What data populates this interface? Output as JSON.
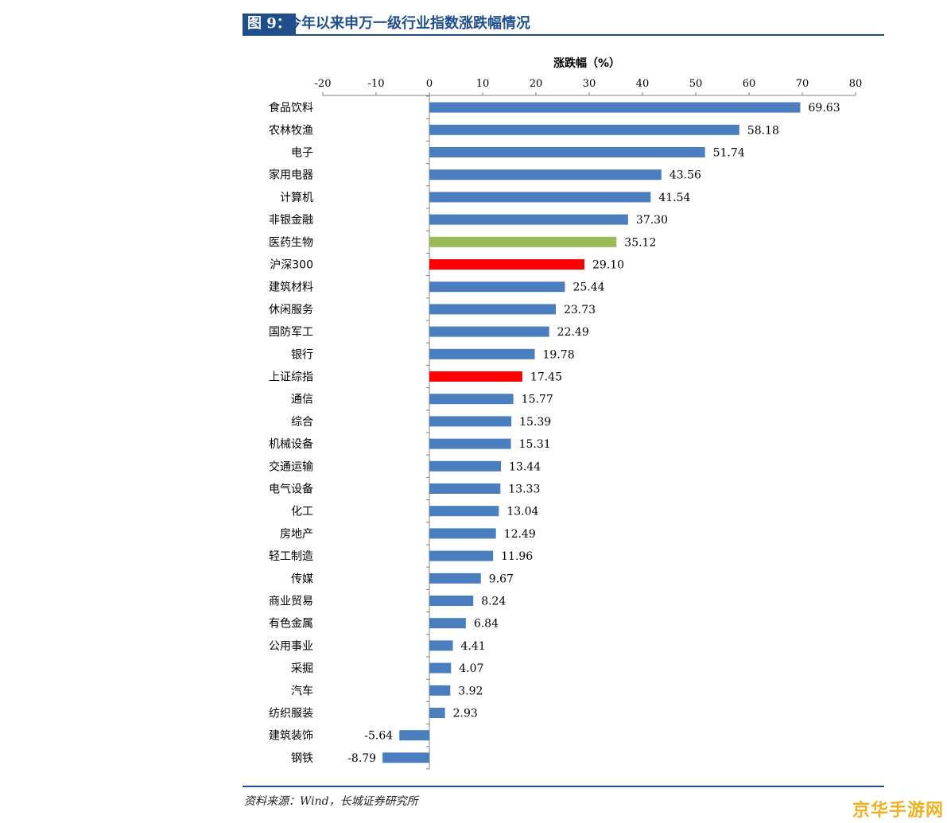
{
  "figure": {
    "tag": "图 9：",
    "title": "今年以来申万一级行业指数涨跌幅情况",
    "source": "资料来源：Wind，长城证券研究所",
    "watermark": "京华手游网"
  },
  "colors": {
    "default_bar": "#4a7ebf",
    "highlight_green": "#9bbb59",
    "highlight_red": "#ff0000",
    "header_blue": "#1f4e8c"
  },
  "chart_data": {
    "type": "bar",
    "orientation": "horizontal",
    "title": "",
    "xlabel": "涨跌幅（%）",
    "ylabel": "",
    "xlim": [
      -20,
      80
    ],
    "xticks": [
      -20,
      -10,
      0,
      10,
      20,
      30,
      40,
      50,
      60,
      70,
      80
    ],
    "xticks_position": "top",
    "grid": false,
    "categories": [
      "食品饮料",
      "农林牧渔",
      "电子",
      "家用电器",
      "计算机",
      "非银金融",
      "医药生物",
      "沪深300",
      "建筑材料",
      "休闲服务",
      "国防军工",
      "银行",
      "上证综指",
      "通信",
      "综合",
      "机械设备",
      "交通运输",
      "电气设备",
      "化工",
      "房地产",
      "轻工制造",
      "传媒",
      "商业贸易",
      "有色金属",
      "公用事业",
      "采掘",
      "汽车",
      "纺织服装",
      "建筑装饰",
      "钢铁"
    ],
    "values": [
      69.63,
      58.18,
      51.74,
      43.56,
      41.54,
      37.3,
      35.12,
      29.1,
      25.44,
      23.73,
      22.49,
      19.78,
      17.45,
      15.77,
      15.39,
      15.31,
      13.44,
      13.33,
      13.04,
      12.49,
      11.96,
      9.67,
      8.24,
      6.84,
      4.41,
      4.07,
      3.92,
      2.93,
      -5.64,
      -8.79
    ],
    "value_labels": [
      "69.63",
      "58.18",
      "51.74",
      "43.56",
      "41.54",
      "37.30",
      "35.12",
      "29.10",
      "25.44",
      "23.73",
      "22.49",
      "19.78",
      "17.45",
      "15.77",
      "15.39",
      "15.31",
      "13.44",
      "13.33",
      "13.04",
      "12.49",
      "11.96",
      "9.67",
      "8.24",
      "6.84",
      "4.41",
      "4.07",
      "3.92",
      "2.93",
      "-5.64",
      "-8.79"
    ],
    "bar_colors": [
      "default",
      "default",
      "default",
      "default",
      "default",
      "default",
      "green",
      "red",
      "default",
      "default",
      "default",
      "default",
      "red",
      "default",
      "default",
      "default",
      "default",
      "default",
      "default",
      "default",
      "default",
      "default",
      "default",
      "default",
      "default",
      "default",
      "default",
      "default",
      "default",
      "default"
    ]
  }
}
